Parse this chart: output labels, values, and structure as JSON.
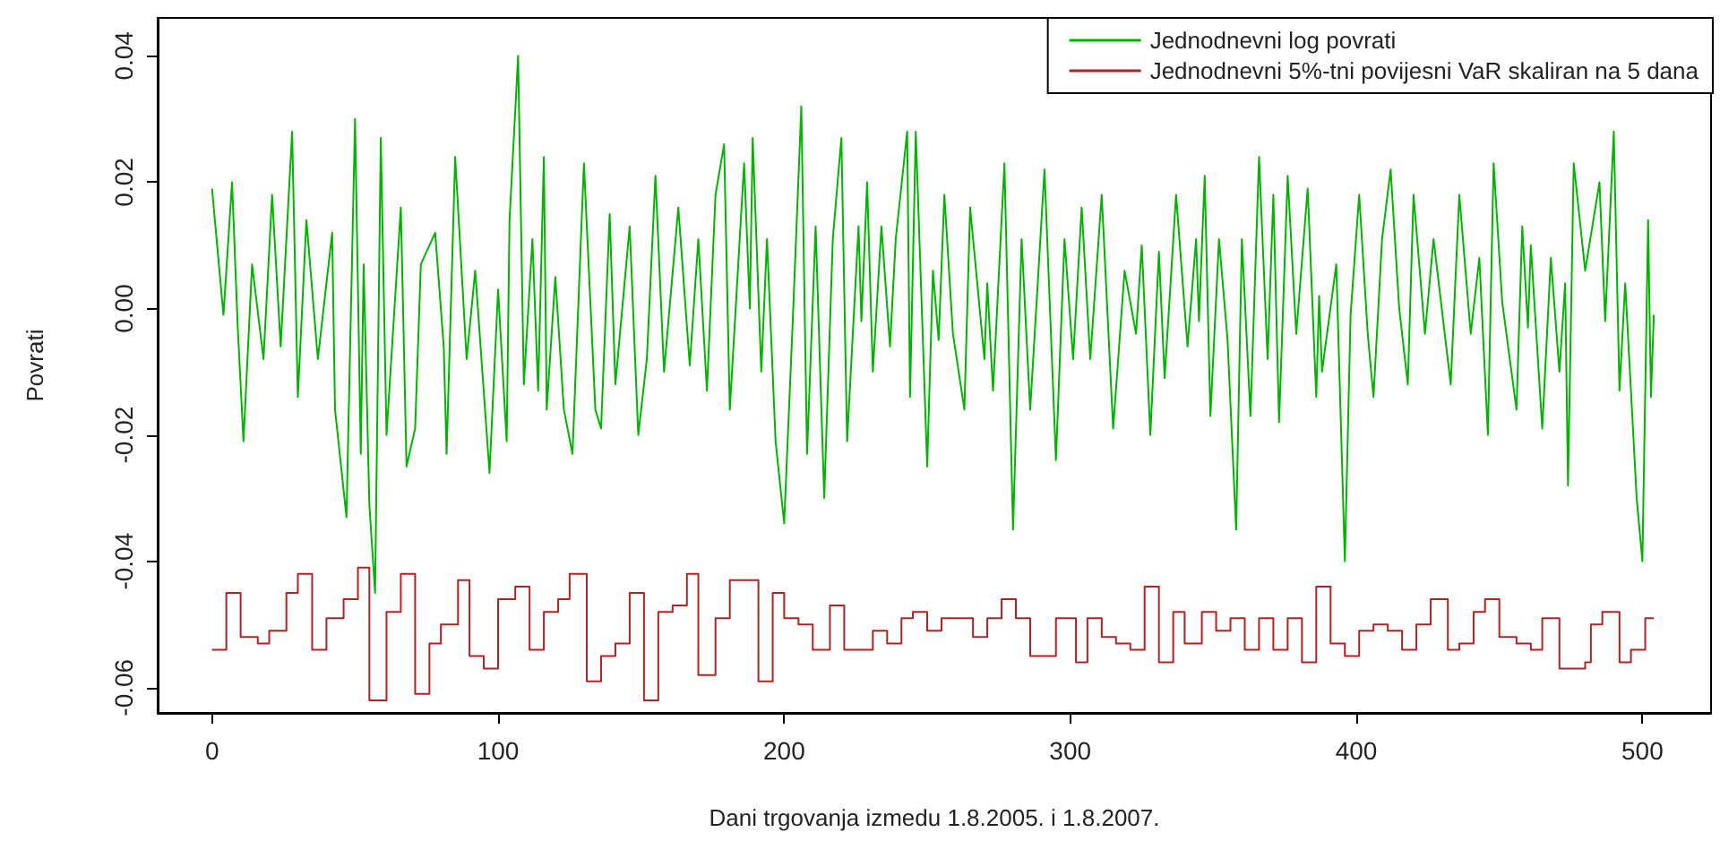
{
  "chart_data": {
    "type": "line",
    "xlabel": "Dani trgovanja izmedu 1.8.2005. i 1.8.2007.",
    "ylabel": "Povrati",
    "xlim": [
      -19,
      524
    ],
    "xticks": [
      0,
      100,
      200,
      300,
      400,
      500
    ],
    "ylim": [
      -0.064,
      0.046
    ],
    "yticks": [
      -0.06,
      -0.04,
      -0.02,
      {
        "value": 0,
        "label": "0.00"
      },
      0.02,
      0.04
    ],
    "grid": false,
    "legend": "top right",
    "marker": "none",
    "line_style": "solid",
    "series": [
      {
        "name": "Jednodnevni log povrati",
        "color": "#00b400",
        "x": [
          0,
          4,
          7,
          9,
          11,
          14,
          18,
          21,
          24,
          28,
          30,
          33,
          37,
          42,
          43,
          47,
          50,
          52,
          53,
          55,
          57,
          59,
          61,
          66,
          68,
          71,
          73,
          78,
          81,
          82,
          85,
          89,
          92,
          97,
          100,
          103,
          104,
          107,
          109,
          112,
          114,
          116,
          117,
          120,
          123,
          126,
          130,
          134,
          136,
          139,
          141,
          146,
          149,
          152,
          155,
          158,
          163,
          167,
          170,
          173,
          176,
          179,
          181,
          186,
          188,
          189,
          192,
          194,
          197,
          200,
          203,
          206,
          208,
          211,
          214,
          217,
          220,
          222,
          226,
          227,
          229,
          231,
          234,
          237,
          239,
          243,
          244,
          246,
          250,
          252,
          254,
          256,
          259,
          263,
          265,
          270,
          271,
          273,
          277,
          280,
          283,
          286,
          291,
          295,
          298,
          301,
          304,
          307,
          311,
          315,
          319,
          323,
          325,
          328,
          331,
          333,
          337,
          341,
          344,
          345,
          347,
          349,
          352,
          355,
          358,
          360,
          363,
          366,
          369,
          371,
          373,
          376,
          379,
          383,
          386,
          387,
          388,
          393,
          396,
          398,
          401,
          404,
          406,
          409,
          412,
          415,
          418,
          420,
          424,
          427,
          433,
          436,
          440,
          443,
          446,
          448,
          451,
          456,
          458,
          460,
          461,
          465,
          468,
          471,
          473,
          474,
          476,
          480,
          485,
          487,
          490,
          492,
          494,
          498,
          500,
          502,
          503,
          504
        ],
        "values": [
          0.019,
          -0.001,
          0.02,
          -0.003,
          -0.021,
          0.007,
          -0.008,
          0.018,
          -0.006,
          0.028,
          -0.014,
          0.014,
          -0.008,
          0.012,
          -0.016,
          -0.033,
          0.03,
          -0.023,
          0.007,
          -0.031,
          -0.045,
          0.027,
          -0.02,
          0.016,
          -0.025,
          -0.019,
          0.007,
          0.012,
          -0.006,
          -0.023,
          0.024,
          -0.008,
          0.006,
          -0.026,
          0.003,
          -0.021,
          0.014,
          0.04,
          -0.012,
          0.011,
          -0.013,
          0.024,
          -0.016,
          0.005,
          -0.016,
          -0.023,
          0.023,
          -0.016,
          -0.019,
          0.015,
          -0.012,
          0.013,
          -0.02,
          -0.008,
          0.021,
          -0.01,
          0.016,
          -0.009,
          0.011,
          -0.013,
          0.018,
          0.026,
          -0.016,
          0.023,
          0.0,
          0.027,
          -0.01,
          0.011,
          -0.021,
          -0.034,
          -0.002,
          0.032,
          -0.023,
          0.013,
          -0.03,
          0.011,
          0.027,
          -0.021,
          0.013,
          -0.002,
          0.02,
          -0.01,
          0.013,
          -0.006,
          0.011,
          0.028,
          -0.014,
          0.028,
          -0.025,
          0.006,
          -0.005,
          0.018,
          -0.004,
          -0.016,
          0.016,
          -0.008,
          0.004,
          -0.013,
          0.023,
          -0.035,
          0.011,
          -0.016,
          0.022,
          -0.024,
          0.011,
          -0.008,
          0.016,
          -0.008,
          0.018,
          -0.019,
          0.006,
          -0.004,
          0.01,
          -0.02,
          0.009,
          -0.011,
          0.018,
          -0.006,
          0.011,
          -0.002,
          0.021,
          -0.017,
          0.011,
          -0.005,
          -0.035,
          0.011,
          -0.017,
          0.024,
          -0.008,
          0.018,
          -0.018,
          0.021,
          -0.004,
          0.019,
          -0.014,
          0.002,
          -0.01,
          0.007,
          -0.04,
          -0.001,
          0.018,
          -0.004,
          -0.014,
          0.011,
          0.022,
          0.0,
          -0.012,
          0.018,
          -0.004,
          0.011,
          -0.012,
          0.018,
          -0.004,
          0.008,
          -0.02,
          0.023,
          0.001,
          -0.016,
          0.013,
          -0.003,
          0.01,
          -0.019,
          0.008,
          -0.01,
          0.004,
          -0.028,
          0.023,
          0.006,
          0.02,
          -0.002,
          0.028,
          -0.013,
          0.004,
          -0.03,
          -0.04,
          0.014,
          -0.014,
          -0.001
        ]
      },
      {
        "name": "Jednodnevni 5%-tni povijesni VaR skaliran na 5 dana",
        "type": "step",
        "color": "#b22222",
        "x": [
          0,
          5,
          10,
          16,
          20,
          26,
          30,
          35,
          40,
          46,
          51,
          55,
          61,
          66,
          71,
          76,
          80,
          86,
          90,
          95,
          100,
          106,
          111,
          116,
          121,
          125,
          131,
          136,
          141,
          146,
          151,
          156,
          161,
          166,
          170,
          176,
          181,
          191,
          196,
          200,
          205,
          210,
          216,
          221,
          231,
          236,
          241,
          245,
          250,
          255,
          266,
          271,
          276,
          281,
          286,
          295,
          302,
          306,
          311,
          316,
          321,
          326,
          331,
          336,
          340,
          346,
          351,
          356,
          361,
          366,
          371,
          376,
          381,
          386,
          391,
          396,
          401,
          406,
          411,
          416,
          421,
          426,
          432,
          436,
          441,
          445,
          450,
          456,
          461,
          465,
          471,
          480,
          482,
          486,
          492,
          496,
          501,
          504
        ],
        "values": [
          -0.054,
          -0.045,
          -0.052,
          -0.053,
          -0.051,
          -0.045,
          -0.042,
          -0.054,
          -0.049,
          -0.046,
          -0.041,
          -0.062,
          -0.048,
          -0.042,
          -0.061,
          -0.053,
          -0.05,
          -0.043,
          -0.055,
          -0.057,
          -0.046,
          -0.044,
          -0.054,
          -0.048,
          -0.046,
          -0.042,
          -0.059,
          -0.055,
          -0.053,
          -0.045,
          -0.062,
          -0.048,
          -0.047,
          -0.042,
          -0.058,
          -0.049,
          -0.043,
          -0.059,
          -0.045,
          -0.049,
          -0.05,
          -0.054,
          -0.047,
          -0.054,
          -0.051,
          -0.053,
          -0.049,
          -0.048,
          -0.051,
          -0.049,
          -0.052,
          -0.049,
          -0.046,
          -0.049,
          -0.055,
          -0.049,
          -0.056,
          -0.049,
          -0.052,
          -0.053,
          -0.054,
          -0.044,
          -0.056,
          -0.048,
          -0.053,
          -0.048,
          -0.051,
          -0.049,
          -0.054,
          -0.049,
          -0.054,
          -0.049,
          -0.056,
          -0.044,
          -0.053,
          -0.055,
          -0.051,
          -0.05,
          -0.051,
          -0.054,
          -0.05,
          -0.046,
          -0.054,
          -0.053,
          -0.048,
          -0.046,
          -0.052,
          -0.053,
          -0.054,
          -0.049,
          -0.057,
          -0.056,
          -0.05,
          -0.048,
          -0.056,
          -0.054,
          -0.049,
          -0.049
        ]
      }
    ]
  }
}
